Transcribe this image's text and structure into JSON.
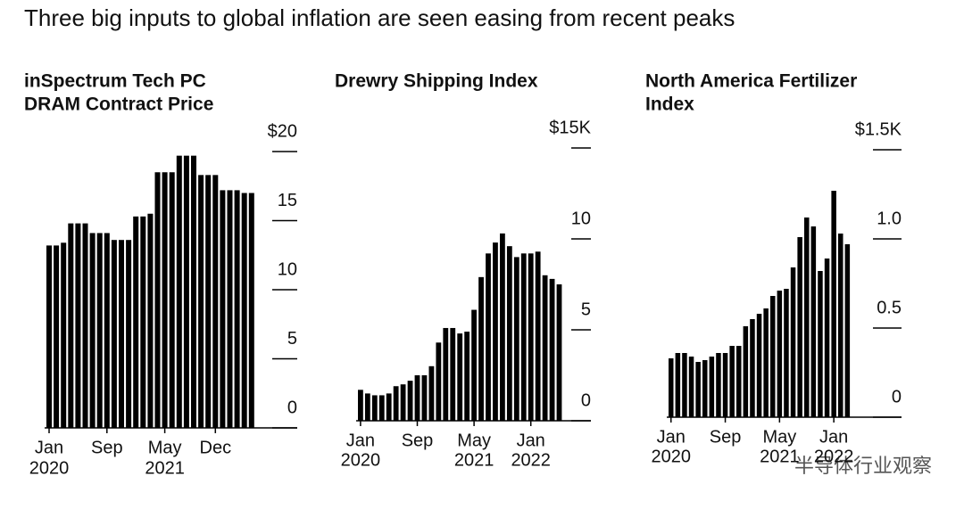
{
  "title": "Three big inputs to global inflation are seen easing from recent peaks",
  "watermark": "半导体行业观察",
  "chart_data": [
    {
      "type": "bar",
      "title": [
        "inSpectrum Tech PC",
        "DRAM Contract Price"
      ],
      "color": "#000000",
      "categories": [
        "Jan",
        null,
        null,
        null,
        null,
        null,
        null,
        null,
        "Sep",
        null,
        null,
        null,
        null,
        null,
        null,
        null,
        "May",
        null,
        null,
        null,
        null,
        null,
        null,
        "Dec",
        null,
        null,
        null,
        null,
        null
      ],
      "years": [
        "2020",
        null,
        null,
        null,
        null,
        null,
        null,
        null,
        null,
        null,
        null,
        null,
        null,
        null,
        null,
        null,
        "2021",
        null,
        null,
        null,
        null,
        null,
        null,
        null,
        null,
        null,
        null,
        null,
        null
      ],
      "values": [
        13.2,
        13.2,
        13.4,
        14.8,
        14.8,
        14.8,
        14.1,
        14.1,
        14.1,
        13.6,
        13.6,
        13.6,
        15.3,
        15.3,
        15.5,
        18.5,
        18.5,
        18.5,
        19.7,
        19.7,
        19.7,
        18.3,
        18.3,
        18.3,
        17.2,
        17.2,
        17.2,
        17.0,
        17.0
      ],
      "ylim": [
        0,
        20
      ],
      "yticks": [
        0,
        5,
        10,
        15,
        {
          "value": 20,
          "label": "$20"
        }
      ]
    },
    {
      "type": "bar",
      "title": [
        "Drewry Shipping Index"
      ],
      "color": "#000000",
      "categories": [
        "Jan",
        null,
        null,
        null,
        null,
        null,
        null,
        null,
        "Sep",
        null,
        null,
        null,
        null,
        null,
        null,
        null,
        "May",
        null,
        null,
        null,
        null,
        null,
        null,
        null,
        "Jan",
        null,
        null,
        null,
        null
      ],
      "years": [
        "2020",
        null,
        null,
        null,
        null,
        null,
        null,
        null,
        null,
        null,
        null,
        null,
        null,
        null,
        null,
        null,
        "2021",
        null,
        null,
        null,
        null,
        null,
        null,
        null,
        "2022",
        null,
        null,
        null,
        null
      ],
      "values": [
        1.7,
        1.5,
        1.4,
        1.4,
        1.5,
        1.9,
        2.0,
        2.2,
        2.5,
        2.5,
        3.0,
        4.3,
        5.1,
        5.1,
        4.8,
        4.9,
        6.1,
        7.9,
        9.2,
        9.8,
        10.3,
        9.6,
        9.0,
        9.2,
        9.2,
        9.3,
        8.0,
        7.8,
        7.5
      ],
      "ylim": [
        0,
        15
      ],
      "yticks": [
        0,
        5,
        10,
        {
          "value": 15,
          "label": "$15K"
        }
      ]
    },
    {
      "type": "bar",
      "title": [
        "North America Fertilizer",
        "Index"
      ],
      "color": "#000000",
      "categories": [
        "Jan",
        null,
        null,
        null,
        null,
        null,
        null,
        null,
        "Sep",
        null,
        null,
        null,
        null,
        null,
        null,
        null,
        "May",
        null,
        null,
        null,
        null,
        null,
        null,
        null,
        "Jan",
        null,
        null
      ],
      "years": [
        "2020",
        null,
        null,
        null,
        null,
        null,
        null,
        null,
        null,
        null,
        null,
        null,
        null,
        null,
        null,
        null,
        "2021",
        null,
        null,
        null,
        null,
        null,
        null,
        null,
        "2022",
        null,
        null
      ],
      "values": [
        0.33,
        0.36,
        0.36,
        0.34,
        0.31,
        0.32,
        0.34,
        0.36,
        0.36,
        0.4,
        0.4,
        0.51,
        0.55,
        0.58,
        0.61,
        0.68,
        0.71,
        0.72,
        0.84,
        1.01,
        1.12,
        1.07,
        0.82,
        0.89,
        1.27,
        1.03,
        0.97
      ],
      "ylim": [
        0,
        1.5
      ],
      "yticks": [
        0,
        0.5,
        {
          "value": 1,
          "label": "1.0"
        },
        {
          "value": 1.5,
          "label": "$1.5K"
        }
      ]
    }
  ]
}
